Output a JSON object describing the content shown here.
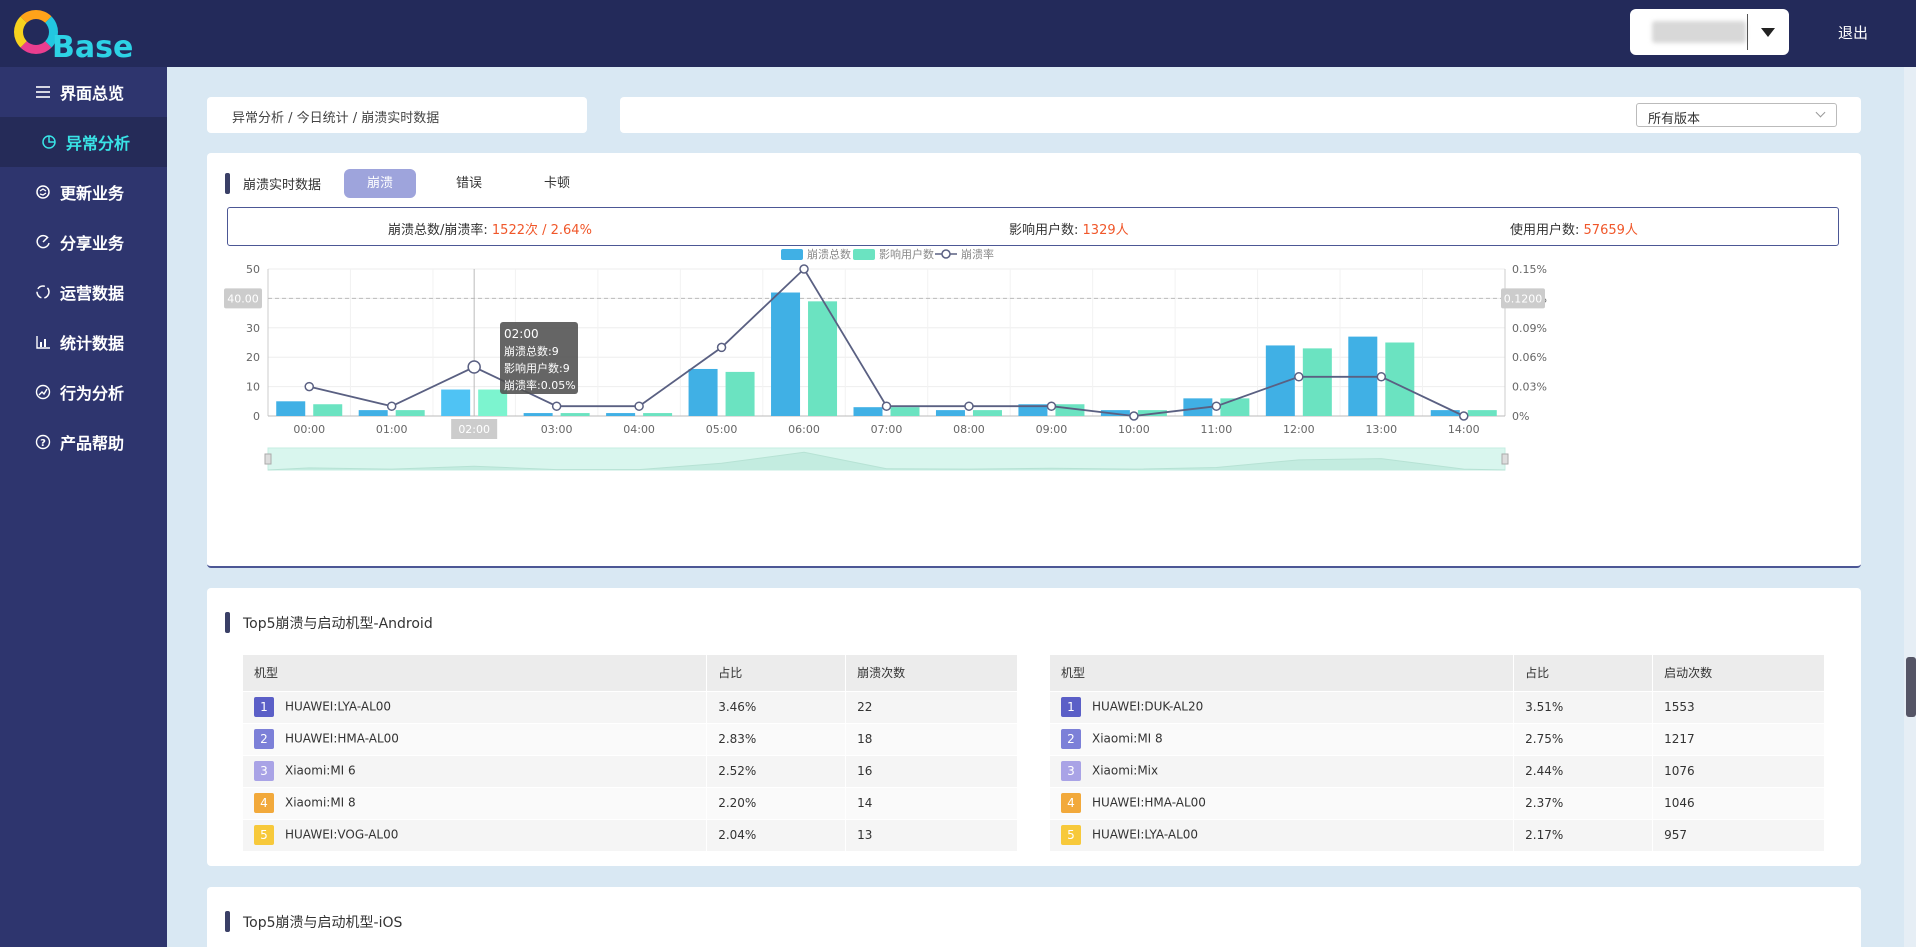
{
  "header": {
    "logo_text": "Base",
    "logout_label": "退出"
  },
  "sidebar": {
    "items": [
      {
        "label": "界面总览",
        "icon": "menu-icon",
        "active": false
      },
      {
        "label": "异常分析",
        "icon": "pie-chart-icon",
        "active": true
      },
      {
        "label": "更新业务",
        "icon": "refresh-icon",
        "active": false
      },
      {
        "label": "分享业务",
        "icon": "share-icon",
        "active": false
      },
      {
        "label": "运营数据",
        "icon": "cycle-icon",
        "active": false
      },
      {
        "label": "统计数据",
        "icon": "bar-chart-icon",
        "active": false
      },
      {
        "label": "行为分析",
        "icon": "trend-icon",
        "active": false
      },
      {
        "label": "产品帮助",
        "icon": "help-icon",
        "active": false
      }
    ]
  },
  "breadcrumb": "异常分析 / 今日统计 / 崩溃实时数据",
  "version_select": {
    "value": "所有版本"
  },
  "realtime": {
    "title": "崩溃实时数据",
    "tabs": [
      "崩溃",
      "错误",
      "卡顿"
    ],
    "active_tab": "崩溃",
    "summary": {
      "total_label": "崩溃总数/崩溃率:",
      "total_value": "1522次 / 2.64%",
      "affected_label": "影响用户数:",
      "affected_value": "1329人",
      "users_label": "使用用户数:",
      "users_value": "57659人"
    },
    "tooltip": {
      "time": "02:00",
      "line1": "崩溃总数:9",
      "line2": "影响用户数:9",
      "line3": "崩溃率:0.05%"
    },
    "pointer_left": "40.00",
    "pointer_right": "0.1200"
  },
  "chart_data": {
    "type": "bar",
    "categories": [
      "00:00",
      "01:00",
      "02:00",
      "03:00",
      "04:00",
      "05:00",
      "06:00",
      "07:00",
      "08:00",
      "09:00",
      "10:00",
      "11:00",
      "12:00",
      "13:00",
      "14:00"
    ],
    "series": [
      {
        "name": "崩溃总数",
        "type": "bar",
        "color": "#40b0e5",
        "values": [
          5,
          2,
          9,
          1,
          1,
          16,
          42,
          3,
          2,
          4,
          2,
          6,
          24,
          27,
          2
        ]
      },
      {
        "name": "影响用户数",
        "type": "bar",
        "color": "#6be3c1",
        "values": [
          4,
          2,
          9,
          1,
          1,
          15,
          39,
          3,
          2,
          4,
          2,
          6,
          23,
          25,
          2
        ]
      },
      {
        "name": "崩溃率",
        "type": "line",
        "color": "#5a6082",
        "values": [
          0.03,
          0.01,
          0.05,
          0.01,
          0.01,
          0.07,
          0.15,
          0.01,
          0.01,
          0.01,
          0,
          0.01,
          0.04,
          0.04,
          0
        ]
      }
    ],
    "y_left": {
      "ticks": [
        "0",
        "10",
        "20",
        "30",
        "40",
        "50"
      ],
      "max": 50
    },
    "y_right": {
      "ticks": [
        "0%",
        "0.03%",
        "0.06%",
        "0.09%",
        "0.12%",
        "0.15%"
      ],
      "max": 0.15
    },
    "legend": "top-center",
    "highlight_index": 2
  },
  "android": {
    "title": "Top5崩溃与启动机型-Android",
    "crash": {
      "headers": [
        "机型",
        "占比",
        "崩溃次数"
      ],
      "rows": [
        [
          "1",
          "HUAWEI:LYA-AL00",
          "3.46%",
          "22"
        ],
        [
          "2",
          "HUAWEI:HMA-AL00",
          "2.83%",
          "18"
        ],
        [
          "3",
          "Xiaomi:MI 6",
          "2.52%",
          "16"
        ],
        [
          "4",
          "Xiaomi:MI 8",
          "2.20%",
          "14"
        ],
        [
          "5",
          "HUAWEI:VOG-AL00",
          "2.04%",
          "13"
        ]
      ]
    },
    "launch": {
      "headers": [
        "机型",
        "占比",
        "启动次数"
      ],
      "rows": [
        [
          "1",
          "HUAWEI:DUK-AL20",
          "3.51%",
          "1553"
        ],
        [
          "2",
          "Xiaomi:MI 8",
          "2.75%",
          "1217"
        ],
        [
          "3",
          "Xiaomi:Mix",
          "2.44%",
          "1076"
        ],
        [
          "4",
          "HUAWEI:HMA-AL00",
          "2.37%",
          "1046"
        ],
        [
          "5",
          "HUAWEI:LYA-AL00",
          "2.17%",
          "957"
        ]
      ]
    },
    "badge_colors": [
      "#5b5fc7",
      "#7c80d8",
      "#a9a3e6",
      "#f2a93b",
      "#f7c93b"
    ]
  },
  "ios": {
    "title": "Top5崩溃与启动机型-iOS"
  }
}
